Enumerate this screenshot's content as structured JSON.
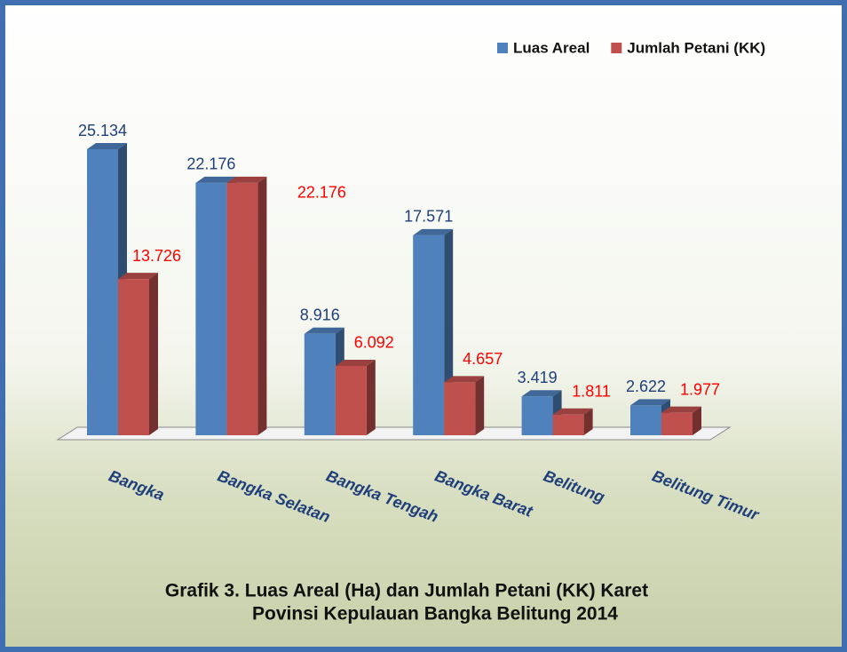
{
  "chart_data": {
    "type": "bar3d",
    "caption": [
      "Grafik 3.  Luas Areal (Ha) dan Jumlah Petani (KK) Karet",
      "Povinsi Kepulauan Bangka Belitung 2014"
    ],
    "categories": [
      "Bangka",
      "Bangka Selatan",
      "Bangka Tengah",
      "Bangka Barat",
      "Belitung",
      "Belitung Timur"
    ],
    "series": [
      {
        "name": "Luas Areal",
        "color": "#4f81bd",
        "label_color": "#1f3f7a",
        "values": [
          25134,
          22176,
          8916,
          17571,
          3419,
          2622
        ],
        "value_labels": [
          "25.134",
          "22.176",
          "8.916",
          "17.571",
          "3.419",
          "2.622"
        ]
      },
      {
        "name": "Jumlah Petani (KK)",
        "color": "#c0504d",
        "label_color": "#ff0000",
        "values": [
          13726,
          22176,
          6092,
          4657,
          1811,
          1977
        ],
        "value_labels": [
          "13.726",
          "22.176",
          "6.092",
          "4.657",
          "1.811",
          "1.977"
        ]
      }
    ],
    "legend": "top-right"
  }
}
